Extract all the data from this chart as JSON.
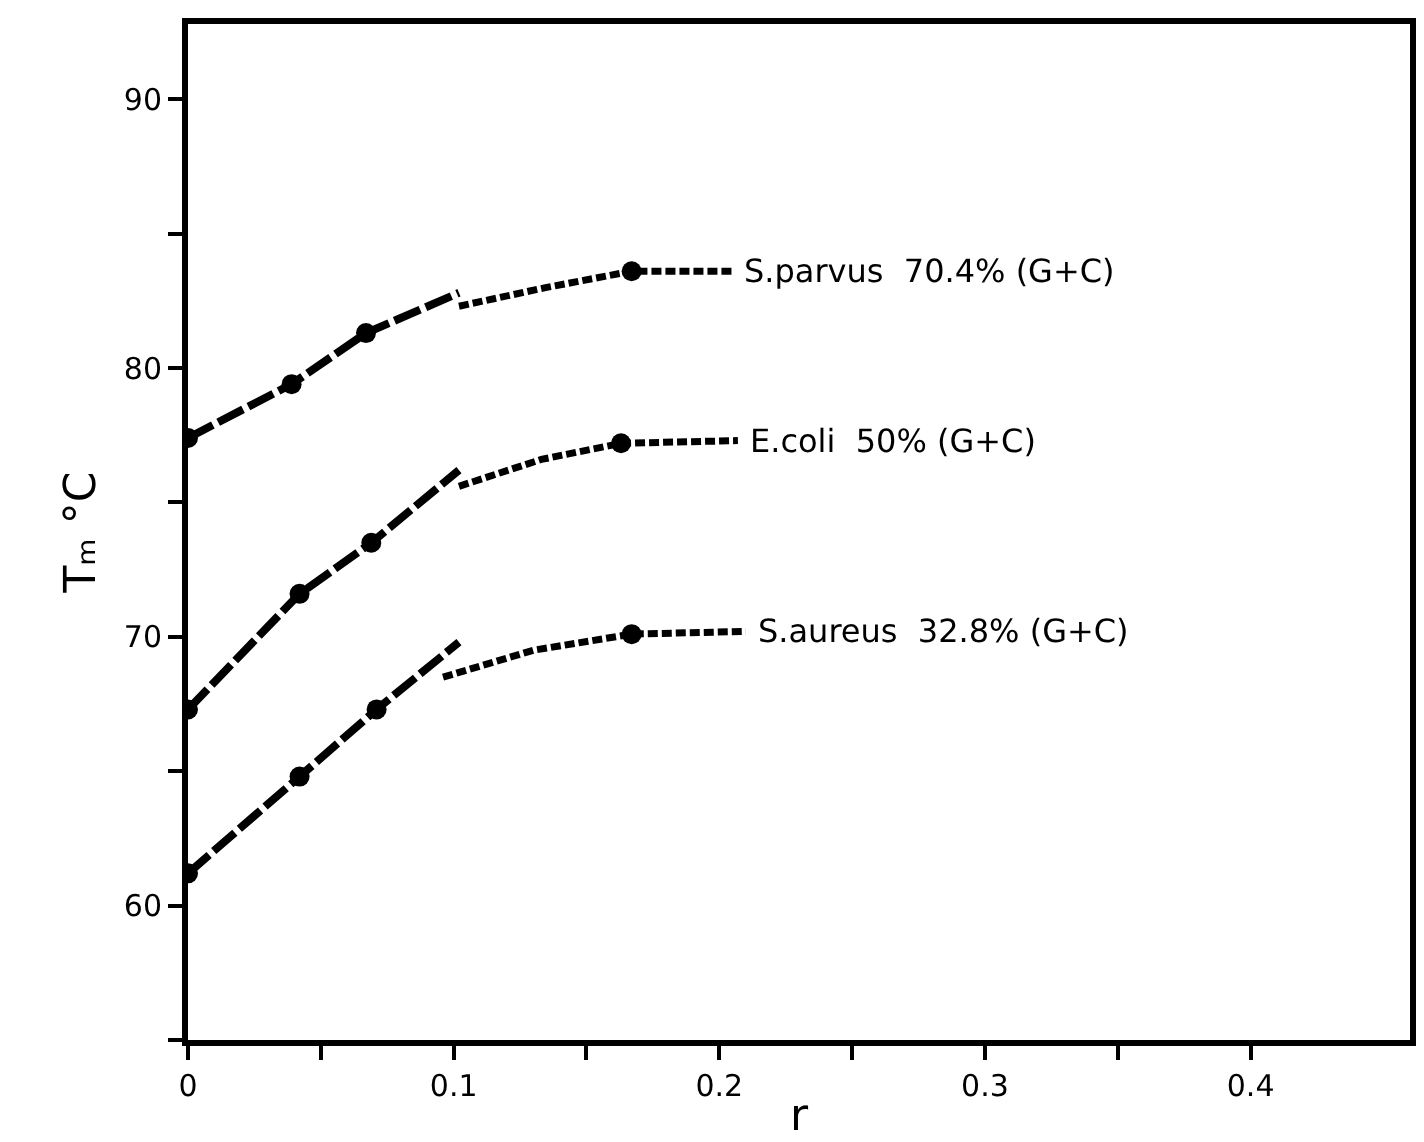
{
  "chart_data": {
    "type": "line",
    "xlabel": "r",
    "ylabel": "Tₘ °C",
    "xlim": [
      0,
      0.46
    ],
    "ylim": [
      55,
      92.8
    ],
    "xticks": [
      0,
      {
        "value": 0.05,
        "label": null
      },
      0.1,
      {
        "value": 0.15,
        "label": null
      },
      0.2,
      {
        "value": 0.25,
        "label": null
      },
      0.3,
      {
        "value": 0.35,
        "label": null
      },
      0.4
    ],
    "yticks": [
      {
        "value": 55,
        "label": null
      },
      60,
      {
        "value": 65,
        "label": null
      },
      70,
      {
        "value": 75,
        "label": null
      },
      80,
      {
        "value": 85,
        "label": null
      },
      90
    ],
    "legend": false,
    "series": [
      {
        "color": "#000000",
        "line_style": "dashed",
        "marker": "none",
        "x": [
          0,
          0.039,
          0.067,
          0.102
        ],
        "values": [
          77.4,
          79.4,
          81.3,
          82.8
        ]
      },
      {
        "name": "S.parvus  70.4% (G+C)",
        "color": "#000000",
        "line_style": "dotted",
        "marker": "none",
        "x": [
          0.102,
          0.135,
          0.167,
          0.205
        ],
        "values": [
          82.3,
          83.0,
          83.6,
          83.6
        ]
      },
      {
        "type": "scatter",
        "color": "#000000",
        "marker": "circle",
        "x": [
          0,
          0.039,
          0.067,
          0.167
        ],
        "values": [
          77.4,
          79.4,
          81.3,
          83.6
        ]
      },
      {
        "color": "#000000",
        "line_style": "dashed",
        "marker": "none",
        "x": [
          0,
          0.042,
          0.069,
          0.102
        ],
        "values": [
          67.3,
          71.6,
          73.5,
          76.2
        ]
      },
      {
        "name": "E.coli  50% (G+C)",
        "color": "#000000",
        "line_style": "dotted",
        "marker": "none",
        "x": [
          0.102,
          0.133,
          0.163,
          0.207
        ],
        "values": [
          75.6,
          76.6,
          77.2,
          77.3
        ]
      },
      {
        "type": "scatter",
        "color": "#000000",
        "marker": "circle",
        "x": [
          0,
          0.042,
          0.069,
          0.163
        ],
        "values": [
          67.3,
          71.6,
          73.5,
          77.2
        ]
      },
      {
        "color": "#000000",
        "line_style": "dashed",
        "marker": "none",
        "x": [
          0,
          0.042,
          0.071,
          0.102
        ],
        "values": [
          61.2,
          64.8,
          67.3,
          69.8
        ]
      },
      {
        "name": "S.aureus  32.8% (G+C)",
        "color": "#000000",
        "line_style": "dotted",
        "marker": "none",
        "x": [
          0.096,
          0.13,
          0.167,
          0.21
        ],
        "values": [
          68.5,
          69.5,
          70.1,
          70.2
        ]
      },
      {
        "type": "scatter",
        "color": "#000000",
        "marker": "circle",
        "x": [
          0,
          0.042,
          0.071,
          0.167
        ],
        "values": [
          61.2,
          64.8,
          67.3,
          70.1
        ]
      }
    ]
  }
}
